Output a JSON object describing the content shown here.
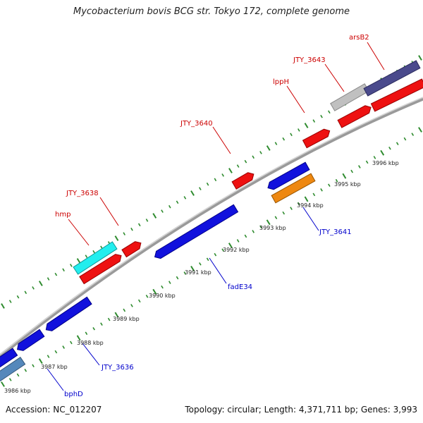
{
  "title": "Mycobacterium bovis BCG str. Tokyo 172, complete genome",
  "footer": {
    "accession": "Accession: NC_012207",
    "summary": "Topology: circular; Length: 4,371,711 bp; Genes: 3,993"
  },
  "colors": {
    "backbone": "#8a8a8a",
    "tick": "#2e8b2e",
    "forward_label": "#cc0000",
    "reverse_label": "#0000cc",
    "red_gene": "#ee1111",
    "blue_gene": "#1111dd",
    "cyan_gene": "#22eeee",
    "orange_gene": "#ee8811",
    "gray_gene": "#c0c0c0",
    "navy_gene": "#4a4a8c",
    "steel_gene": "#5588bb"
  },
  "scale_labels": [
    "3986 kbp",
    "3987 kbp",
    "3988 kbp",
    "3989 kbp",
    "3990 kbp",
    "3991 kbp",
    "3992 kbp",
    "3993 kbp",
    "3994 kbp",
    "3995 kbp",
    "3996 kbp"
  ],
  "forward_gene_labels": [
    "hmp",
    "JTY_3638",
    "JTY_3640",
    "lppH",
    "JTY_3643",
    "arsB2"
  ],
  "reverse_gene_labels": [
    "bphD",
    "JTY_3636",
    "fadE34",
    "JTY_3641"
  ]
}
